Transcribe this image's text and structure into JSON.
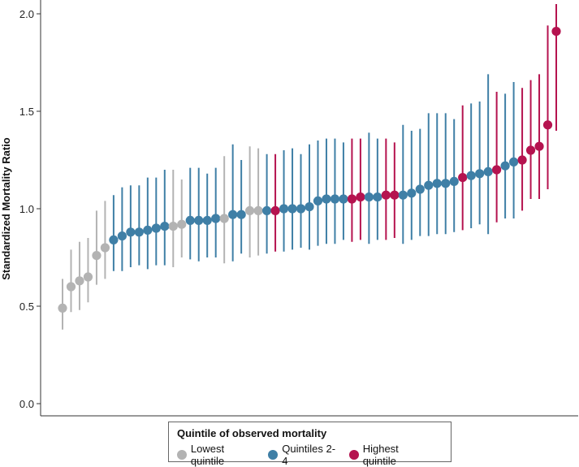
{
  "chart_data": {
    "type": "scatter",
    "ylabel": "Standardized Mortality Ratio",
    "ylim": [
      0,
      2.05
    ],
    "yticks": [
      "0.0",
      "0.5",
      "1.0",
      "1.5",
      "2.0"
    ],
    "grid": false,
    "legend": {
      "title": "Quintile of observed mortality",
      "placement": "bottom-center",
      "entries": [
        {
          "key": "lowest",
          "label": "Lowest quintile",
          "color": "#b3b3b3"
        },
        {
          "key": "middle",
          "label": "Quintiles 2-4",
          "color": "#3f7fa6"
        },
        {
          "key": "highest",
          "label": "Highest quintile",
          "color": "#b5134f"
        }
      ]
    },
    "points": [
      {
        "y": 0.49,
        "lo": 0.38,
        "hi": 0.64,
        "group": "lowest"
      },
      {
        "y": 0.6,
        "lo": 0.47,
        "hi": 0.79,
        "group": "lowest"
      },
      {
        "y": 0.63,
        "lo": 0.48,
        "hi": 0.83,
        "group": "lowest"
      },
      {
        "y": 0.65,
        "lo": 0.52,
        "hi": 0.85,
        "group": "lowest"
      },
      {
        "y": 0.76,
        "lo": 0.61,
        "hi": 0.99,
        "group": "lowest"
      },
      {
        "y": 0.8,
        "lo": 0.64,
        "hi": 1.04,
        "group": "lowest"
      },
      {
        "y": 0.84,
        "lo": 0.68,
        "hi": 1.07,
        "group": "middle"
      },
      {
        "y": 0.86,
        "lo": 0.68,
        "hi": 1.11,
        "group": "middle"
      },
      {
        "y": 0.88,
        "lo": 0.7,
        "hi": 1.12,
        "group": "middle"
      },
      {
        "y": 0.88,
        "lo": 0.71,
        "hi": 1.12,
        "group": "middle"
      },
      {
        "y": 0.89,
        "lo": 0.69,
        "hi": 1.16,
        "group": "middle"
      },
      {
        "y": 0.9,
        "lo": 0.71,
        "hi": 1.16,
        "group": "middle"
      },
      {
        "y": 0.91,
        "lo": 0.71,
        "hi": 1.2,
        "group": "middle"
      },
      {
        "y": 0.91,
        "lo": 0.7,
        "hi": 1.2,
        "group": "lowest"
      },
      {
        "y": 0.92,
        "lo": 0.75,
        "hi": 1.15,
        "group": "lowest"
      },
      {
        "y": 0.94,
        "lo": 0.74,
        "hi": 1.21,
        "group": "middle"
      },
      {
        "y": 0.94,
        "lo": 0.73,
        "hi": 1.21,
        "group": "middle"
      },
      {
        "y": 0.94,
        "lo": 0.75,
        "hi": 1.18,
        "group": "middle"
      },
      {
        "y": 0.95,
        "lo": 0.75,
        "hi": 1.21,
        "group": "middle"
      },
      {
        "y": 0.95,
        "lo": 0.72,
        "hi": 1.27,
        "group": "lowest"
      },
      {
        "y": 0.97,
        "lo": 0.73,
        "hi": 1.33,
        "group": "middle"
      },
      {
        "y": 0.97,
        "lo": 0.77,
        "hi": 1.25,
        "group": "middle"
      },
      {
        "y": 0.99,
        "lo": 0.75,
        "hi": 1.32,
        "group": "lowest"
      },
      {
        "y": 0.99,
        "lo": 0.76,
        "hi": 1.31,
        "group": "lowest"
      },
      {
        "y": 0.99,
        "lo": 0.77,
        "hi": 1.28,
        "group": "middle"
      },
      {
        "y": 0.99,
        "lo": 0.78,
        "hi": 1.28,
        "group": "highest"
      },
      {
        "y": 1.0,
        "lo": 0.78,
        "hi": 1.3,
        "group": "middle"
      },
      {
        "y": 1.0,
        "lo": 0.79,
        "hi": 1.31,
        "group": "middle"
      },
      {
        "y": 1.0,
        "lo": 0.8,
        "hi": 1.28,
        "group": "middle"
      },
      {
        "y": 1.01,
        "lo": 0.79,
        "hi": 1.33,
        "group": "middle"
      },
      {
        "y": 1.04,
        "lo": 0.81,
        "hi": 1.35,
        "group": "middle"
      },
      {
        "y": 1.05,
        "lo": 0.82,
        "hi": 1.36,
        "group": "middle"
      },
      {
        "y": 1.05,
        "lo": 0.82,
        "hi": 1.36,
        "group": "middle"
      },
      {
        "y": 1.05,
        "lo": 0.84,
        "hi": 1.34,
        "group": "middle"
      },
      {
        "y": 1.05,
        "lo": 0.83,
        "hi": 1.36,
        "group": "highest"
      },
      {
        "y": 1.06,
        "lo": 0.84,
        "hi": 1.36,
        "group": "highest"
      },
      {
        "y": 1.06,
        "lo": 0.82,
        "hi": 1.39,
        "group": "middle"
      },
      {
        "y": 1.06,
        "lo": 0.84,
        "hi": 1.36,
        "group": "middle"
      },
      {
        "y": 1.07,
        "lo": 0.84,
        "hi": 1.36,
        "group": "highest"
      },
      {
        "y": 1.07,
        "lo": 0.85,
        "hi": 1.34,
        "group": "highest"
      },
      {
        "y": 1.07,
        "lo": 0.82,
        "hi": 1.43,
        "group": "middle"
      },
      {
        "y": 1.08,
        "lo": 0.84,
        "hi": 1.4,
        "group": "middle"
      },
      {
        "y": 1.1,
        "lo": 0.86,
        "hi": 1.41,
        "group": "middle"
      },
      {
        "y": 1.12,
        "lo": 0.86,
        "hi": 1.49,
        "group": "middle"
      },
      {
        "y": 1.13,
        "lo": 0.87,
        "hi": 1.49,
        "group": "middle"
      },
      {
        "y": 1.13,
        "lo": 0.87,
        "hi": 1.49,
        "group": "middle"
      },
      {
        "y": 1.14,
        "lo": 0.88,
        "hi": 1.46,
        "group": "middle"
      },
      {
        "y": 1.16,
        "lo": 0.89,
        "hi": 1.53,
        "group": "highest"
      },
      {
        "y": 1.17,
        "lo": 0.9,
        "hi": 1.54,
        "group": "middle"
      },
      {
        "y": 1.18,
        "lo": 0.92,
        "hi": 1.55,
        "group": "middle"
      },
      {
        "y": 1.19,
        "lo": 0.87,
        "hi": 1.69,
        "group": "middle"
      },
      {
        "y": 1.2,
        "lo": 0.93,
        "hi": 1.6,
        "group": "highest"
      },
      {
        "y": 1.22,
        "lo": 0.95,
        "hi": 1.59,
        "group": "middle"
      },
      {
        "y": 1.24,
        "lo": 0.95,
        "hi": 1.65,
        "group": "middle"
      },
      {
        "y": 1.25,
        "lo": 0.99,
        "hi": 1.62,
        "group": "highest"
      },
      {
        "y": 1.3,
        "lo": 1.05,
        "hi": 1.66,
        "group": "highest"
      },
      {
        "y": 1.32,
        "lo": 1.05,
        "hi": 1.69,
        "group": "highest"
      },
      {
        "y": 1.43,
        "lo": 1.1,
        "hi": 1.94,
        "group": "highest"
      },
      {
        "y": 1.91,
        "lo": 1.4,
        "hi": 2.05,
        "group": "highest"
      }
    ]
  }
}
